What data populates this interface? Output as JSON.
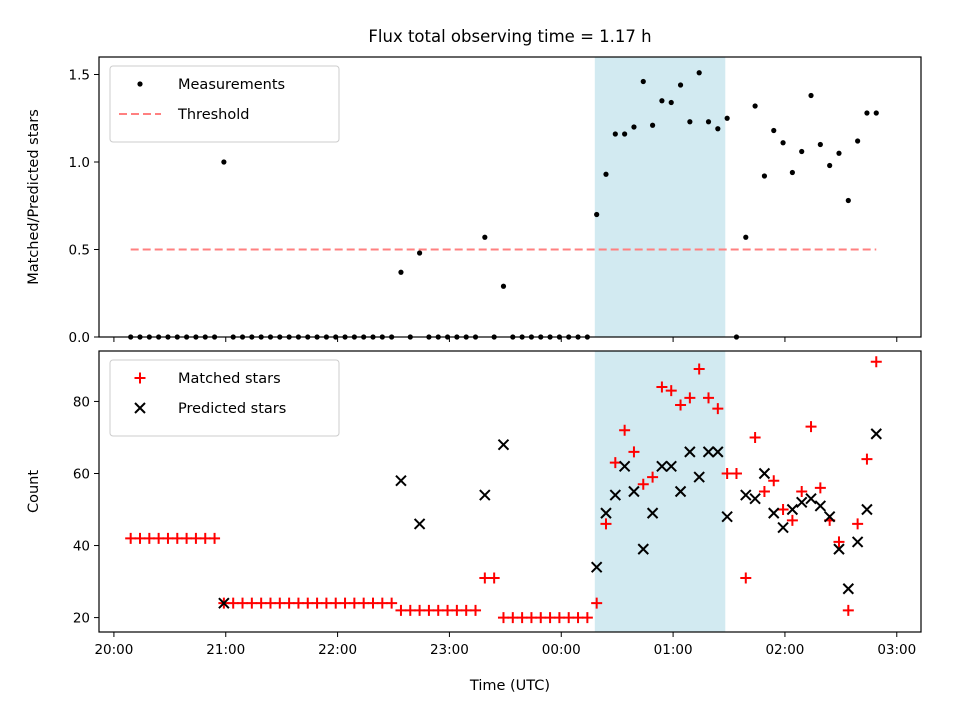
{
  "chart_data": {
    "type": "scatter",
    "title": "Flux total observing time = 1.17 h",
    "xlabel": "Time (UTC)",
    "x_axis": {
      "type": "time",
      "tick_labels": [
        "20:00",
        "21:00",
        "22:00",
        "23:00",
        "00:00",
        "01:00",
        "02:00",
        "03:00"
      ],
      "xlim": [
        "19:52",
        "03:13"
      ]
    },
    "highlight_span": {
      "start": "00:18",
      "end": "01:28",
      "color": "#add8e6"
    },
    "panels": [
      {
        "ylabel": "Matched/Predicted stars",
        "ylim": [
          0,
          1.6
        ],
        "yticks": [
          "0.0",
          "0.5",
          "1.0",
          "1.5"
        ],
        "yticks_values": [
          0,
          0.5,
          1.0,
          1.5
        ],
        "legend_position": "upper-left",
        "series": [
          {
            "name": "Measurements",
            "marker": "dot",
            "color": "#000000",
            "points": [
              [
                "20:09",
                0
              ],
              [
                "20:14",
                0
              ],
              [
                "20:19",
                0
              ],
              [
                "20:24",
                0
              ],
              [
                "20:29",
                0
              ],
              [
                "20:34",
                0
              ],
              [
                "20:39",
                0
              ],
              [
                "20:44",
                0
              ],
              [
                "20:49",
                0
              ],
              [
                "20:54",
                0
              ],
              [
                "20:59",
                1.0
              ],
              [
                "21:04",
                0
              ],
              [
                "21:09",
                0
              ],
              [
                "21:14",
                0
              ],
              [
                "21:19",
                0
              ],
              [
                "21:24",
                0
              ],
              [
                "21:29",
                0
              ],
              [
                "21:34",
                0
              ],
              [
                "21:39",
                0
              ],
              [
                "21:44",
                0
              ],
              [
                "21:49",
                0
              ],
              [
                "21:54",
                0
              ],
              [
                "21:59",
                0
              ],
              [
                "22:04",
                0
              ],
              [
                "22:09",
                0
              ],
              [
                "22:14",
                0
              ],
              [
                "22:19",
                0
              ],
              [
                "22:24",
                0
              ],
              [
                "22:29",
                0
              ],
              [
                "22:34",
                0.37
              ],
              [
                "22:39",
                0
              ],
              [
                "22:44",
                0.48
              ],
              [
                "22:49",
                0
              ],
              [
                "22:54",
                0
              ],
              [
                "22:59",
                0
              ],
              [
                "23:04",
                0
              ],
              [
                "23:09",
                0
              ],
              [
                "23:14",
                0
              ],
              [
                "23:19",
                0.57
              ],
              [
                "23:24",
                0
              ],
              [
                "23:29",
                0.29
              ],
              [
                "23:34",
                0
              ],
              [
                "23:39",
                0
              ],
              [
                "23:44",
                0
              ],
              [
                "23:49",
                0
              ],
              [
                "23:54",
                0
              ],
              [
                "23:59",
                0
              ],
              [
                "00:04",
                0
              ],
              [
                "00:09",
                0
              ],
              [
                "00:14",
                0
              ],
              [
                "00:19",
                0.7
              ],
              [
                "00:24",
                0.93
              ],
              [
                "00:29",
                1.16
              ],
              [
                "00:34",
                1.16
              ],
              [
                "00:39",
                1.2
              ],
              [
                "00:44",
                1.46
              ],
              [
                "00:49",
                1.21
              ],
              [
                "00:54",
                1.35
              ],
              [
                "00:59",
                1.34
              ],
              [
                "01:04",
                1.44
              ],
              [
                "01:09",
                1.23
              ],
              [
                "01:14",
                1.51
              ],
              [
                "01:19",
                1.23
              ],
              [
                "01:24",
                1.19
              ],
              [
                "01:29",
                1.25
              ],
              [
                "01:34",
                0
              ],
              [
                "01:39",
                0.57
              ],
              [
                "01:44",
                1.32
              ],
              [
                "01:49",
                0.92
              ],
              [
                "01:54",
                1.18
              ],
              [
                "01:59",
                1.11
              ],
              [
                "02:04",
                0.94
              ],
              [
                "02:09",
                1.06
              ],
              [
                "02:14",
                1.38
              ],
              [
                "02:19",
                1.1
              ],
              [
                "02:24",
                0.98
              ],
              [
                "02:29",
                1.05
              ],
              [
                "02:34",
                0.78
              ],
              [
                "02:39",
                1.12
              ],
              [
                "02:44",
                1.28
              ],
              [
                "02:49",
                1.28
              ]
            ]
          },
          {
            "name": "Threshold",
            "type": "line",
            "style": "dashed",
            "color": "#ff8080",
            "x": [
              "20:09",
              "02:49"
            ],
            "y": [
              0.5,
              0.5
            ]
          }
        ]
      },
      {
        "ylabel": "Count",
        "ylim": [
          16,
          94
        ],
        "yticks": [
          "20",
          "40",
          "60",
          "80"
        ],
        "yticks_values": [
          20,
          40,
          60,
          80
        ],
        "legend_position": "upper-left",
        "series": [
          {
            "name": "Matched stars",
            "marker": "plus",
            "color": "#ff0000",
            "points": [
              [
                "20:09",
                42
              ],
              [
                "20:14",
                42
              ],
              [
                "20:19",
                42
              ],
              [
                "20:24",
                42
              ],
              [
                "20:29",
                42
              ],
              [
                "20:34",
                42
              ],
              [
                "20:39",
                42
              ],
              [
                "20:44",
                42
              ],
              [
                "20:49",
                42
              ],
              [
                "20:54",
                42
              ],
              [
                "20:59",
                24
              ],
              [
                "21:04",
                24
              ],
              [
                "21:09",
                24
              ],
              [
                "21:14",
                24
              ],
              [
                "21:19",
                24
              ],
              [
                "21:24",
                24
              ],
              [
                "21:29",
                24
              ],
              [
                "21:34",
                24
              ],
              [
                "21:39",
                24
              ],
              [
                "21:44",
                24
              ],
              [
                "21:49",
                24
              ],
              [
                "21:54",
                24
              ],
              [
                "21:59",
                24
              ],
              [
                "22:04",
                24
              ],
              [
                "22:09",
                24
              ],
              [
                "22:14",
                24
              ],
              [
                "22:19",
                24
              ],
              [
                "22:24",
                24
              ],
              [
                "22:29",
                24
              ],
              [
                "22:34",
                22
              ],
              [
                "22:39",
                22
              ],
              [
                "22:44",
                22
              ],
              [
                "22:49",
                22
              ],
              [
                "22:54",
                22
              ],
              [
                "22:59",
                22
              ],
              [
                "23:04",
                22
              ],
              [
                "23:09",
                22
              ],
              [
                "23:14",
                22
              ],
              [
                "23:19",
                31
              ],
              [
                "23:24",
                31
              ],
              [
                "23:29",
                20
              ],
              [
                "23:34",
                20
              ],
              [
                "23:39",
                20
              ],
              [
                "23:44",
                20
              ],
              [
                "23:49",
                20
              ],
              [
                "23:54",
                20
              ],
              [
                "23:59",
                20
              ],
              [
                "00:04",
                20
              ],
              [
                "00:09",
                20
              ],
              [
                "00:14",
                20
              ],
              [
                "00:19",
                24
              ],
              [
                "00:24",
                46
              ],
              [
                "00:29",
                63
              ],
              [
                "00:34",
                72
              ],
              [
                "00:39",
                66
              ],
              [
                "00:44",
                57
              ],
              [
                "00:49",
                59
              ],
              [
                "00:54",
                84
              ],
              [
                "00:59",
                83
              ],
              [
                "01:04",
                79
              ],
              [
                "01:09",
                81
              ],
              [
                "01:14",
                89
              ],
              [
                "01:19",
                81
              ],
              [
                "01:24",
                78
              ],
              [
                "01:29",
                60
              ],
              [
                "01:34",
                60
              ],
              [
                "01:39",
                31
              ],
              [
                "01:44",
                70
              ],
              [
                "01:49",
                55
              ],
              [
                "01:54",
                58
              ],
              [
                "01:59",
                50
              ],
              [
                "02:04",
                47
              ],
              [
                "02:09",
                55
              ],
              [
                "02:14",
                73
              ],
              [
                "02:19",
                56
              ],
              [
                "02:24",
                47
              ],
              [
                "02:29",
                41
              ],
              [
                "02:34",
                22
              ],
              [
                "02:39",
                46
              ],
              [
                "02:44",
                64
              ],
              [
                "02:49",
                91
              ]
            ]
          },
          {
            "name": "Predicted stars",
            "marker": "x",
            "color": "#000000",
            "points": [
              [
                "20:59",
                24
              ],
              [
                "22:34",
                58
              ],
              [
                "22:44",
                46
              ],
              [
                "23:19",
                54
              ],
              [
                "23:29",
                68
              ],
              [
                "00:19",
                34
              ],
              [
                "00:24",
                49
              ],
              [
                "00:29",
                54
              ],
              [
                "00:34",
                62
              ],
              [
                "00:39",
                55
              ],
              [
                "00:44",
                39
              ],
              [
                "00:49",
                49
              ],
              [
                "00:54",
                62
              ],
              [
                "00:59",
                62
              ],
              [
                "01:04",
                55
              ],
              [
                "01:09",
                66
              ],
              [
                "01:14",
                59
              ],
              [
                "01:19",
                66
              ],
              [
                "01:24",
                66
              ],
              [
                "01:29",
                48
              ],
              [
                "01:39",
                54
              ],
              [
                "01:44",
                53
              ],
              [
                "01:49",
                60
              ],
              [
                "01:54",
                49
              ],
              [
                "01:59",
                45
              ],
              [
                "02:04",
                50
              ],
              [
                "02:09",
                52
              ],
              [
                "02:14",
                53
              ],
              [
                "02:19",
                51
              ],
              [
                "02:24",
                48
              ],
              [
                "02:29",
                39
              ],
              [
                "02:34",
                28
              ],
              [
                "02:39",
                41
              ],
              [
                "02:44",
                50
              ],
              [
                "02:49",
                71
              ]
            ]
          }
        ]
      }
    ]
  }
}
